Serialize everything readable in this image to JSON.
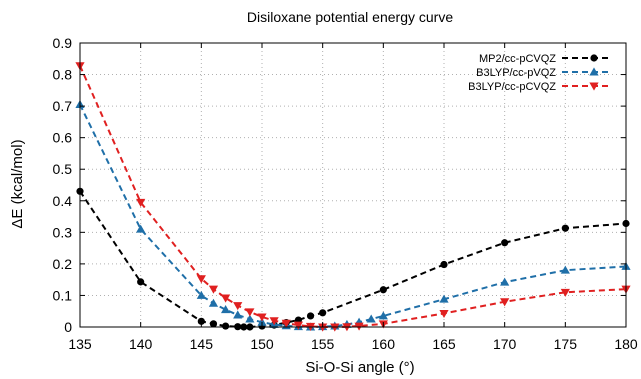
{
  "chart_data": {
    "type": "line",
    "title": "Disiloxane potential energy curve",
    "xlabel": "Si-O-Si angle (°)",
    "ylabel": "ΔE (kcal/mol)",
    "xlim": [
      135,
      180
    ],
    "ylim": [
      0,
      0.9
    ],
    "xticks": [
      "135",
      "140",
      "145",
      "150",
      "155",
      "160",
      "165",
      "170",
      "175",
      "180"
    ],
    "yticks": [
      "0",
      "0.1",
      "0.2",
      "0.3",
      "0.4",
      "0.5",
      "0.6",
      "0.7",
      "0.8",
      "0.9"
    ],
    "grid": true,
    "legend_position": "top-right",
    "series": [
      {
        "name": "MP2/cc-pCVQZ",
        "color": "#000000",
        "marker": "circle",
        "x": [
          135,
          140,
          145,
          146,
          147,
          148,
          148.5,
          149,
          150,
          151,
          152,
          153,
          154,
          155,
          160,
          165,
          170,
          175,
          180
        ],
        "y": [
          0.43,
          0.143,
          0.018,
          0.01,
          0.003,
          0.001,
          0.0,
          0.0,
          0.003,
          0.006,
          0.014,
          0.022,
          0.035,
          0.045,
          0.118,
          0.198,
          0.267,
          0.313,
          0.328
        ]
      },
      {
        "name": "B3LYP/cc-pVQZ",
        "color": "#1f6fa8",
        "marker": "triangle-up",
        "x": [
          135,
          140,
          145,
          146,
          147,
          148,
          149,
          150,
          151,
          152,
          153,
          154,
          155,
          156,
          157,
          158,
          159,
          160,
          165,
          170,
          175,
          180
        ],
        "y": [
          0.705,
          0.31,
          0.1,
          0.075,
          0.055,
          0.038,
          0.025,
          0.015,
          0.008,
          0.004,
          0.001,
          0.0,
          0.001,
          0.003,
          0.008,
          0.015,
          0.025,
          0.035,
          0.088,
          0.142,
          0.18,
          0.192
        ]
      },
      {
        "name": "B3LYP/cc-pCVQZ",
        "color": "#e02020",
        "marker": "triangle-down",
        "x": [
          135,
          140,
          145,
          146,
          147,
          148,
          149,
          150,
          151,
          152,
          153,
          154,
          155,
          156,
          157,
          158,
          160,
          165,
          170,
          175,
          180
        ],
        "y": [
          0.828,
          0.395,
          0.153,
          0.12,
          0.092,
          0.068,
          0.048,
          0.032,
          0.02,
          0.012,
          0.006,
          0.002,
          0.0,
          0.0,
          0.001,
          0.003,
          0.01,
          0.043,
          0.08,
          0.11,
          0.12
        ]
      }
    ]
  }
}
